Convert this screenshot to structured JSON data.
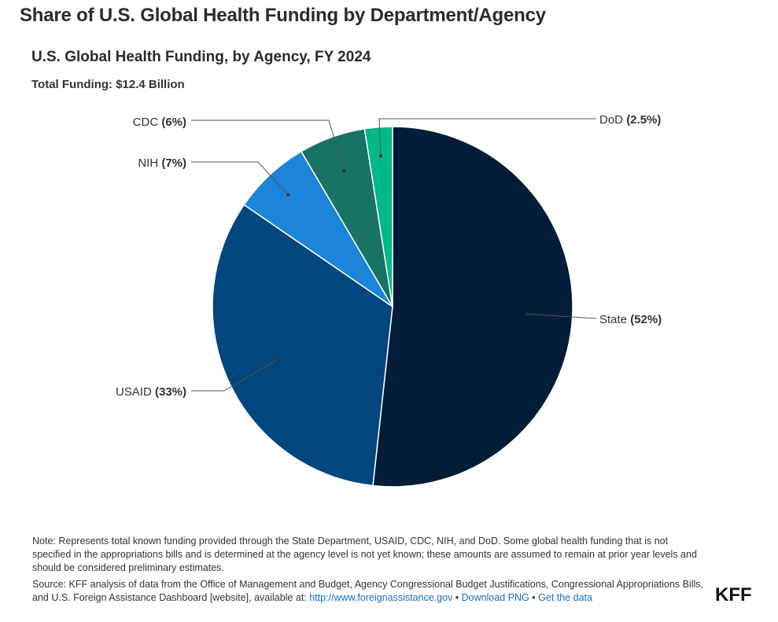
{
  "header": {
    "page_heading": "Share of U.S. Global Health Funding by Department/Agency"
  },
  "chart_data": {
    "type": "pie",
    "title": "U.S. Global Health Funding, by Agency, FY 2024",
    "subtitle": "Total Funding: $12.4 Billion",
    "slices": [
      {
        "id": "state",
        "label": "State",
        "pct_label": "(52%)",
        "value": 52,
        "color": "#011d37"
      },
      {
        "id": "usaid",
        "label": "USAID",
        "pct_label": "(33%)",
        "value": 33,
        "color": "#01467f"
      },
      {
        "id": "nih",
        "label": "NIH",
        "pct_label": "(7%)",
        "value": 7,
        "color": "#1c84d9"
      },
      {
        "id": "cdc",
        "label": "CDC",
        "pct_label": "(6%)",
        "value": 6,
        "color": "#187365"
      },
      {
        "id": "dod",
        "label": "DoD",
        "pct_label": "(2.5%)",
        "value": 2.5,
        "color": "#00b989"
      }
    ]
  },
  "footer": {
    "note": "Note: Represents total known funding provided through the State Department, USAID, CDC, NIH, and DoD. Some global health funding that is not specified in the appropriations bills and is determined at the agency level is not yet known; these amounts are assumed to remain at prior year levels and should be considered preliminary estimates.",
    "source_text": "Source: KFF analysis of data from the Office of Management and Budget, Agency Congressional Budget Justifications, Congressional Appropriations Bills, and U.S. Foreign Assistance Dashboard [website], available at: ",
    "source_link": "http://www.foreignassistance.gov",
    "separator_1": " • ",
    "download_link": "Download PNG",
    "separator_2": " • ",
    "data_link": "Get the data",
    "logo": "KFF"
  }
}
